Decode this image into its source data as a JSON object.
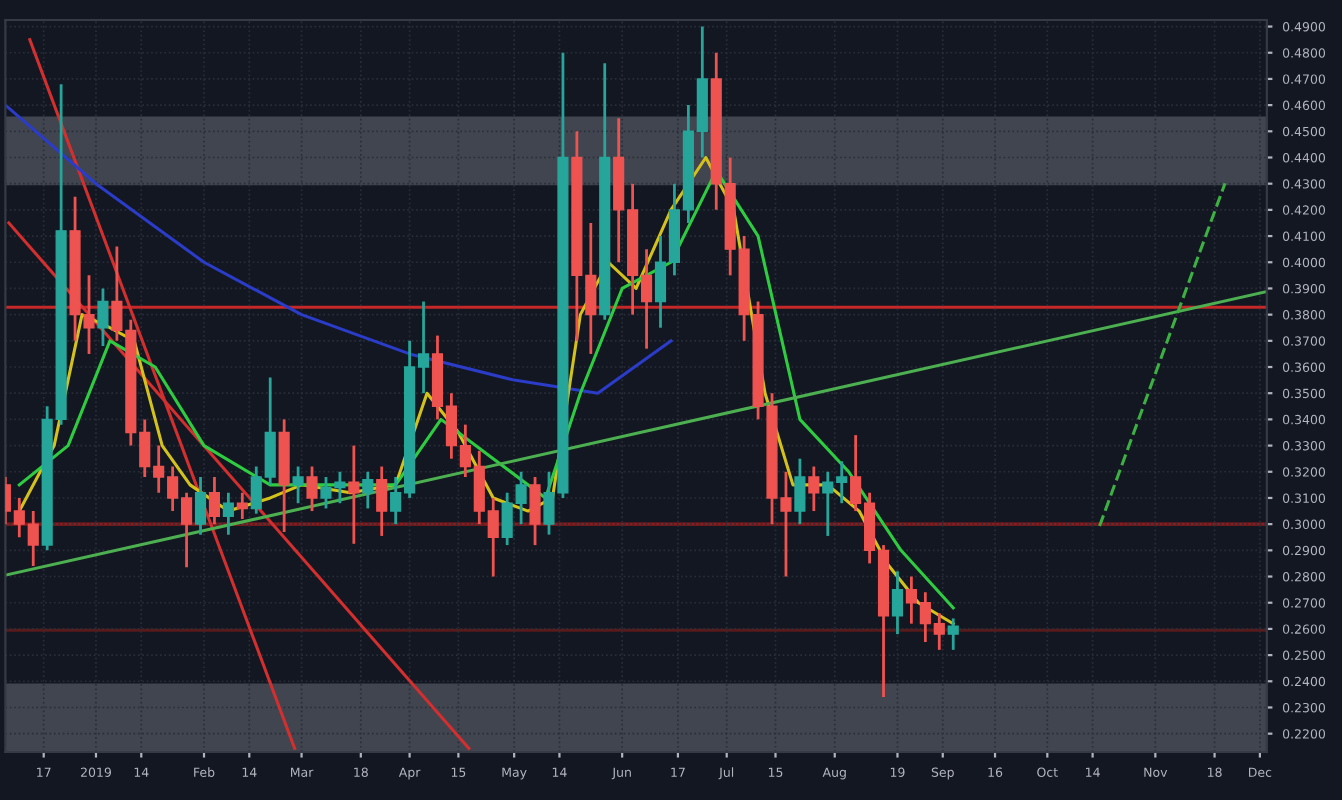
{
  "chart_data": {
    "type": "candlestick",
    "x": [
      "2018-12-06",
      "2018-12-10",
      "2018-12-14",
      "2018-12-18",
      "2018-12-22",
      "2018-12-26",
      "2018-12-30",
      "2019-01-03",
      "2019-01-07",
      "2019-01-11",
      "2019-01-15",
      "2019-01-19",
      "2019-01-23",
      "2019-01-27",
      "2019-01-31",
      "2019-02-04",
      "2019-02-08",
      "2019-02-12",
      "2019-02-16",
      "2019-02-20",
      "2019-02-24",
      "2019-02-28",
      "2019-03-04",
      "2019-03-08",
      "2019-03-12",
      "2019-03-16",
      "2019-03-20",
      "2019-03-24",
      "2019-03-28",
      "2019-04-01",
      "2019-04-05",
      "2019-04-09",
      "2019-04-13",
      "2019-04-17",
      "2019-04-21",
      "2019-04-25",
      "2019-04-29",
      "2019-05-03",
      "2019-05-07",
      "2019-05-11",
      "2019-05-15",
      "2019-05-19",
      "2019-05-23",
      "2019-05-27",
      "2019-05-31",
      "2019-06-04",
      "2019-06-08",
      "2019-06-12",
      "2019-06-16",
      "2019-06-20",
      "2019-06-24",
      "2019-06-28",
      "2019-07-02",
      "2019-07-06",
      "2019-07-10",
      "2019-07-14",
      "2019-07-18",
      "2019-07-22",
      "2019-07-26",
      "2019-07-30",
      "2019-08-03",
      "2019-08-07",
      "2019-08-11",
      "2019-08-15",
      "2019-08-19",
      "2019-08-23",
      "2019-08-27",
      "2019-08-31",
      "2019-09-04"
    ],
    "ohlc": [
      [
        0.315,
        0.318,
        0.3,
        0.305
      ],
      [
        0.305,
        0.31,
        0.295,
        0.3
      ],
      [
        0.3,
        0.305,
        0.284,
        0.292
      ],
      [
        0.292,
        0.345,
        0.29,
        0.34
      ],
      [
        0.34,
        0.468,
        0.338,
        0.412
      ],
      [
        0.412,
        0.425,
        0.37,
        0.38
      ],
      [
        0.38,
        0.395,
        0.365,
        0.375
      ],
      [
        0.375,
        0.39,
        0.368,
        0.385
      ],
      [
        0.385,
        0.406,
        0.37,
        0.374
      ],
      [
        0.374,
        0.378,
        0.33,
        0.335
      ],
      [
        0.335,
        0.34,
        0.318,
        0.322
      ],
      [
        0.322,
        0.33,
        0.312,
        0.318
      ],
      [
        0.318,
        0.322,
        0.305,
        0.31
      ],
      [
        0.31,
        0.312,
        0.2835,
        0.3
      ],
      [
        0.3,
        0.318,
        0.296,
        0.312
      ],
      [
        0.312,
        0.318,
        0.3,
        0.303
      ],
      [
        0.303,
        0.312,
        0.296,
        0.308
      ],
      [
        0.308,
        0.312,
        0.302,
        0.306
      ],
      [
        0.306,
        0.322,
        0.304,
        0.318
      ],
      [
        0.318,
        0.356,
        0.315,
        0.335
      ],
      [
        0.335,
        0.34,
        0.297,
        0.315
      ],
      [
        0.315,
        0.322,
        0.308,
        0.318
      ],
      [
        0.318,
        0.322,
        0.305,
        0.31
      ],
      [
        0.31,
        0.318,
        0.306,
        0.314
      ],
      [
        0.314,
        0.32,
        0.308,
        0.316
      ],
      [
        0.316,
        0.33,
        0.2925,
        0.312
      ],
      [
        0.312,
        0.32,
        0.306,
        0.317
      ],
      [
        0.317,
        0.322,
        0.2955,
        0.305
      ],
      [
        0.305,
        0.318,
        0.3,
        0.312
      ],
      [
        0.312,
        0.37,
        0.31,
        0.36
      ],
      [
        0.36,
        0.385,
        0.35,
        0.365
      ],
      [
        0.365,
        0.372,
        0.34,
        0.345
      ],
      [
        0.345,
        0.35,
        0.325,
        0.33
      ],
      [
        0.33,
        0.338,
        0.318,
        0.322
      ],
      [
        0.322,
        0.328,
        0.3,
        0.305
      ],
      [
        0.305,
        0.31,
        0.28,
        0.295
      ],
      [
        0.295,
        0.312,
        0.292,
        0.308
      ],
      [
        0.308,
        0.32,
        0.3,
        0.315
      ],
      [
        0.315,
        0.318,
        0.292,
        0.3
      ],
      [
        0.3,
        0.32,
        0.296,
        0.312
      ],
      [
        0.312,
        0.48,
        0.31,
        0.44
      ],
      [
        0.44,
        0.45,
        0.37,
        0.395
      ],
      [
        0.395,
        0.415,
        0.365,
        0.38
      ],
      [
        0.38,
        0.476,
        0.378,
        0.44
      ],
      [
        0.44,
        0.455,
        0.4,
        0.42
      ],
      [
        0.42,
        0.43,
        0.38,
        0.395
      ],
      [
        0.395,
        0.405,
        0.367,
        0.385
      ],
      [
        0.385,
        0.41,
        0.375,
        0.4
      ],
      [
        0.4,
        0.43,
        0.395,
        0.42
      ],
      [
        0.42,
        0.46,
        0.415,
        0.45
      ],
      [
        0.45,
        0.49,
        0.44,
        0.47
      ],
      [
        0.47,
        0.48,
        0.42,
        0.43
      ],
      [
        0.43,
        0.44,
        0.395,
        0.405
      ],
      [
        0.405,
        0.41,
        0.37,
        0.38
      ],
      [
        0.38,
        0.385,
        0.34,
        0.345
      ],
      [
        0.345,
        0.35,
        0.3,
        0.31
      ],
      [
        0.31,
        0.32,
        0.28,
        0.305
      ],
      [
        0.305,
        0.325,
        0.3,
        0.318
      ],
      [
        0.318,
        0.322,
        0.305,
        0.312
      ],
      [
        0.312,
        0.32,
        0.2955,
        0.316
      ],
      [
        0.316,
        0.324,
        0.308,
        0.318
      ],
      [
        0.318,
        0.334,
        0.305,
        0.308
      ],
      [
        0.308,
        0.312,
        0.285,
        0.29
      ],
      [
        0.29,
        0.292,
        0.234,
        0.265
      ],
      [
        0.265,
        0.282,
        0.258,
        0.275
      ],
      [
        0.275,
        0.28,
        0.262,
        0.27
      ],
      [
        0.27,
        0.274,
        0.255,
        0.262
      ],
      [
        0.262,
        0.266,
        0.252,
        0.258
      ],
      [
        0.258,
        0.264,
        0.252,
        0.261
      ]
    ],
    "series": [
      {
        "type": "line",
        "color": "#d32f2f",
        "x": [
          "2018-12-13",
          "2019-02-27"
        ],
        "values": [
          0.485,
          0.2144
        ]
      },
      {
        "type": "line",
        "color": "#d32f2f",
        "x": [
          "2018-12-07",
          "2019-04-18"
        ],
        "values": [
          0.415,
          0.2144
        ]
      },
      {
        "type": "line",
        "color": "#2a3cc8",
        "x": [
          "2018-12-06",
          "2019-01-01",
          "2019-02-01",
          "2019-03-01",
          "2019-04-01",
          "2019-05-01",
          "2019-05-25",
          "2019-06-15"
        ],
        "values": [
          0.46,
          0.43,
          0.4,
          0.38,
          0.365,
          0.355,
          0.35,
          0.37
        ]
      },
      {
        "type": "line",
        "color": "#d4c21a",
        "x": [
          "2018-12-10",
          "2018-12-20",
          "2018-12-28",
          "2019-01-05",
          "2019-01-12",
          "2019-01-20",
          "2019-01-28",
          "2019-02-08",
          "2019-02-20",
          "2019-03-01",
          "2019-03-15",
          "2019-03-28",
          "2019-04-06",
          "2019-04-15",
          "2019-04-25",
          "2019-05-05",
          "2019-05-12",
          "2019-05-20",
          "2019-05-28",
          "2019-06-05",
          "2019-06-15",
          "2019-06-25",
          "2019-07-03",
          "2019-07-12",
          "2019-07-20",
          "2019-07-30",
          "2019-08-08",
          "2019-08-16",
          "2019-08-25",
          "2019-09-04"
        ],
        "values": [
          0.305,
          0.33,
          0.38,
          0.375,
          0.37,
          0.33,
          0.315,
          0.305,
          0.31,
          0.315,
          0.312,
          0.315,
          0.35,
          0.335,
          0.31,
          0.305,
          0.31,
          0.38,
          0.4,
          0.39,
          0.42,
          0.44,
          0.42,
          0.35,
          0.315,
          0.315,
          0.305,
          0.285,
          0.27,
          0.262
        ]
      },
      {
        "type": "line",
        "color": "#2ecc40",
        "x": [
          "2018-12-10",
          "2018-12-24",
          "2019-01-05",
          "2019-01-18",
          "2019-02-01",
          "2019-02-20",
          "2019-03-10",
          "2019-03-28",
          "2019-04-10",
          "2019-04-25",
          "2019-05-10",
          "2019-05-20",
          "2019-06-01",
          "2019-06-15",
          "2019-06-28",
          "2019-07-10",
          "2019-07-22",
          "2019-08-05",
          "2019-08-20",
          "2019-09-04"
        ],
        "values": [
          0.315,
          0.33,
          0.37,
          0.36,
          0.33,
          0.315,
          0.315,
          0.315,
          0.34,
          0.325,
          0.31,
          0.35,
          0.39,
          0.4,
          0.435,
          0.41,
          0.34,
          0.32,
          0.29,
          0.268
        ]
      },
      {
        "type": "line",
        "color": "#4caf50",
        "x": [
          "2018-12-06",
          "2019-12-03"
        ],
        "values": [
          0.2805,
          0.3888
        ]
      },
      {
        "type": "line",
        "color": "#3cb043",
        "line_style": "dashed",
        "x": [
          "2019-10-16",
          "2019-11-21"
        ],
        "values": [
          0.2993,
          0.4302
        ]
      }
    ],
    "ref_lines": [
      {
        "axis": "y",
        "value": 0.3828,
        "color": "#c62828"
      },
      {
        "axis": "y",
        "value": 0.3,
        "color": "#8e1b1b"
      },
      {
        "axis": "y",
        "value": 0.2595,
        "color": "#5a1a1a"
      }
    ],
    "bands": [
      {
        "axis": "y",
        "from": 0.4294,
        "to": 0.4557,
        "color": "#4a4e58"
      },
      {
        "axis": "y",
        "from": 0.213,
        "to": 0.2392,
        "color": "#4a4e58"
      }
    ],
    "xlim": [
      "2018-12-06",
      "2019-12-03"
    ],
    "xticks": [
      {
        "value": "2018-12-17",
        "label": "17"
      },
      {
        "value": "2019-01-01",
        "label": "2019"
      },
      {
        "value": "2019-01-14",
        "label": "14"
      },
      {
        "value": "2019-02-01",
        "label": "Feb"
      },
      {
        "value": "2019-02-14",
        "label": "14"
      },
      {
        "value": "2019-03-01",
        "label": "Mar"
      },
      {
        "value": "2019-03-18",
        "label": "18"
      },
      {
        "value": "2019-04-01",
        "label": "Apr"
      },
      {
        "value": "2019-04-15",
        "label": "15"
      },
      {
        "value": "2019-05-01",
        "label": "May"
      },
      {
        "value": "2019-05-14",
        "label": "14"
      },
      {
        "value": "2019-06-01",
        "label": "Jun"
      },
      {
        "value": "2019-06-17",
        "label": "17"
      },
      {
        "value": "2019-07-01",
        "label": "Jul"
      },
      {
        "value": "2019-07-15",
        "label": "15"
      },
      {
        "value": "2019-08-01",
        "label": "Aug"
      },
      {
        "value": "2019-08-19",
        "label": "19"
      },
      {
        "value": "2019-09-01",
        "label": "Sep"
      },
      {
        "value": "2019-09-16",
        "label": "16"
      },
      {
        "value": "2019-10-01",
        "label": "Oct"
      },
      {
        "value": "2019-10-14",
        "label": "14"
      },
      {
        "value": "2019-11-01",
        "label": "Nov"
      },
      {
        "value": "2019-11-18",
        "label": "18"
      },
      {
        "value": "2019-12-01",
        "label": "Dec"
      }
    ],
    "ylim": [
      0.213,
      0.4925
    ],
    "yticks": [
      {
        "value": 0.49,
        "label": "0.4900"
      },
      {
        "value": 0.48,
        "label": "0.4800"
      },
      {
        "value": 0.47,
        "label": "0.4700"
      },
      {
        "value": 0.46,
        "label": "0.4600"
      },
      {
        "value": 0.45,
        "label": "0.4500"
      },
      {
        "value": 0.44,
        "label": "0.4400"
      },
      {
        "value": 0.43,
        "label": "0.4300"
      },
      {
        "value": 0.42,
        "label": "0.4200"
      },
      {
        "value": 0.41,
        "label": "0.4100"
      },
      {
        "value": 0.4,
        "label": "0.4000"
      },
      {
        "value": 0.39,
        "label": "0.3900"
      },
      {
        "value": 0.38,
        "label": "0.3800"
      },
      {
        "value": 0.37,
        "label": "0.3700"
      },
      {
        "value": 0.36,
        "label": "0.3600"
      },
      {
        "value": 0.35,
        "label": "0.3500"
      },
      {
        "value": 0.34,
        "label": "0.3400"
      },
      {
        "value": 0.33,
        "label": "0.3300"
      },
      {
        "value": 0.32,
        "label": "0.3200"
      },
      {
        "value": 0.31,
        "label": "0.3100"
      },
      {
        "value": 0.3,
        "label": "0.3000"
      },
      {
        "value": 0.29,
        "label": "0.2900"
      },
      {
        "value": 0.28,
        "label": "0.2800"
      },
      {
        "value": 0.27,
        "label": "0.2700"
      },
      {
        "value": 0.26,
        "label": "0.2600"
      },
      {
        "value": 0.25,
        "label": "0.2500"
      },
      {
        "value": 0.24,
        "label": "0.2400"
      },
      {
        "value": 0.23,
        "label": "0.2300"
      },
      {
        "value": 0.22,
        "label": "0.2200"
      }
    ],
    "grid": true
  }
}
